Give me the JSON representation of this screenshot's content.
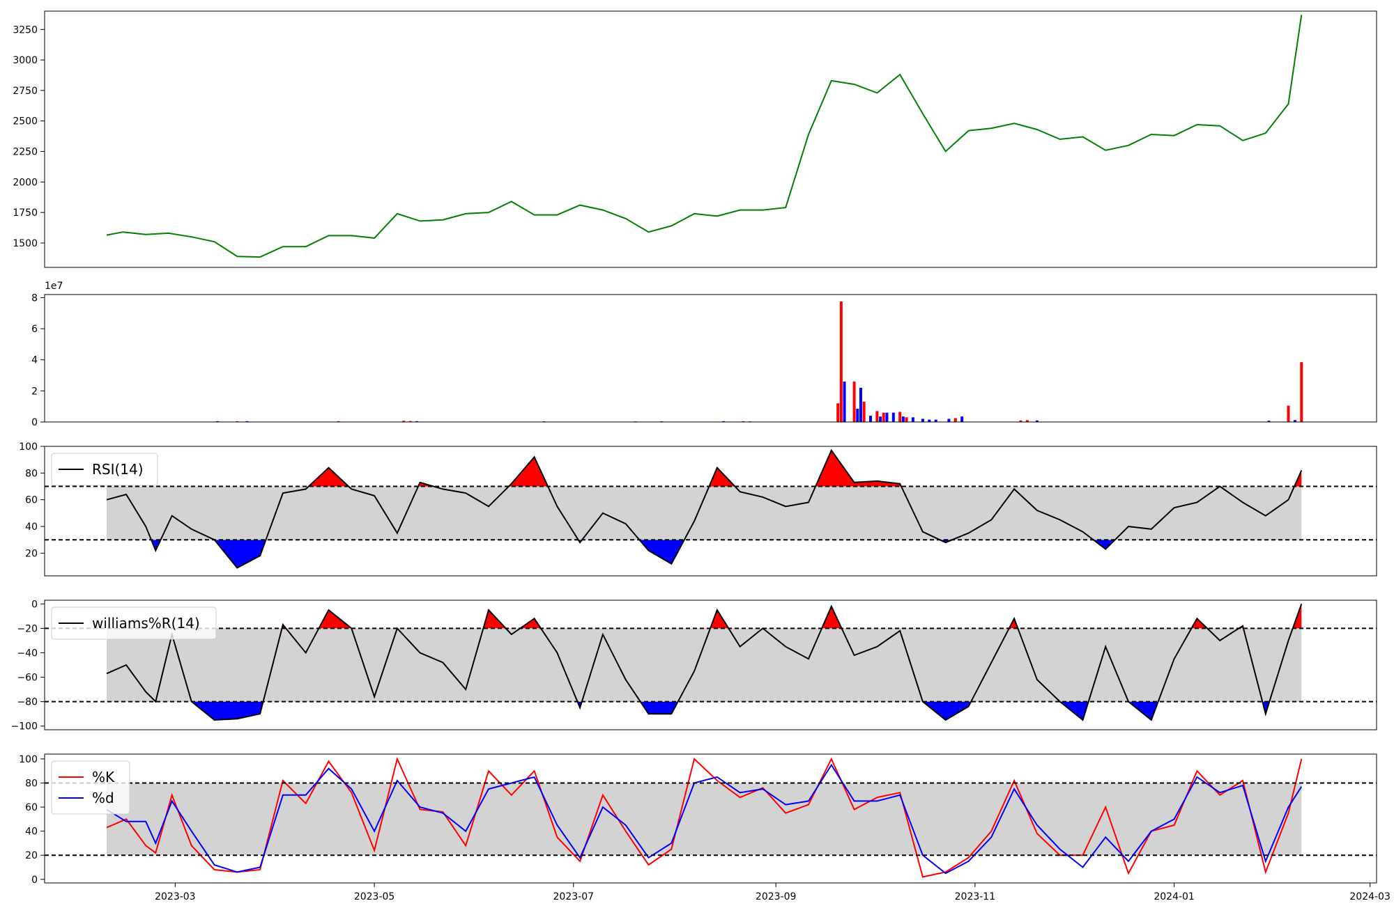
{
  "figure": {
    "x_ticks": [
      "2023-03",
      "2023-05",
      "2023-07",
      "2023-09",
      "2023-11",
      "2024-01",
      "2024-03"
    ],
    "x_range": [
      "2023-01-20",
      "2024-03-03"
    ]
  },
  "colors": {
    "price_line": "#008000",
    "up": "#ff0000",
    "down": "#0000ff",
    "band_fill": "#d3d3d3",
    "indicator_line": "#000000",
    "k_line": "#ff0000",
    "d_line": "#0000ff"
  },
  "chart_data": [
    {
      "id": "price",
      "type": "line",
      "xlabel": "",
      "ylabel": "",
      "ylim": [
        1300,
        3400
      ],
      "yticks": [
        "1500",
        "1750",
        "2000",
        "2250",
        "2500",
        "2750",
        "3000",
        "3250"
      ],
      "grid": false,
      "x": [
        "2023-02-08",
        "2023-02-13",
        "2023-02-20",
        "2023-02-27",
        "2023-03-06",
        "2023-03-13",
        "2023-03-20",
        "2023-03-27",
        "2023-04-03",
        "2023-04-10",
        "2023-04-17",
        "2023-04-24",
        "2023-05-01",
        "2023-05-08",
        "2023-05-15",
        "2023-05-22",
        "2023-05-29",
        "2023-06-05",
        "2023-06-12",
        "2023-06-19",
        "2023-06-26",
        "2023-07-03",
        "2023-07-10",
        "2023-07-17",
        "2023-07-24",
        "2023-07-31",
        "2023-08-07",
        "2023-08-14",
        "2023-08-21",
        "2023-08-28",
        "2023-09-04",
        "2023-09-11",
        "2023-09-18",
        "2023-09-25",
        "2023-10-02",
        "2023-10-09",
        "2023-10-16",
        "2023-10-23",
        "2023-10-30",
        "2023-11-06",
        "2023-11-13",
        "2023-11-20",
        "2023-11-27",
        "2023-12-04",
        "2023-12-11",
        "2023-12-18",
        "2023-12-25",
        "2024-01-01",
        "2024-01-08",
        "2024-01-15",
        "2024-01-22",
        "2024-01-29",
        "2024-02-05",
        "2024-02-09"
      ],
      "values": [
        1565,
        1590,
        1570,
        1580,
        1550,
        1510,
        1390,
        1385,
        1470,
        1470,
        1560,
        1560,
        1540,
        1740,
        1680,
        1690,
        1740,
        1750,
        1840,
        1730,
        1730,
        1810,
        1770,
        1700,
        1590,
        1640,
        1740,
        1720,
        1770,
        1770,
        1790,
        2390,
        2830,
        2800,
        2730,
        2880,
        2560,
        2250,
        2420,
        2440,
        2480,
        2430,
        2350,
        2370,
        2260,
        2300,
        2390,
        2380,
        2470,
        2460,
        2340,
        2400,
        2640,
        3370
      ]
    },
    {
      "id": "volume",
      "type": "bar",
      "xlabel": "",
      "ylabel": "",
      "ylim": [
        0,
        8.2
      ],
      "yticks": [
        "0",
        "2",
        "4",
        "6",
        "8"
      ],
      "scale_label": "1e7",
      "grid": false,
      "series": [
        {
          "color_key": "up",
          "x": [
            "2023-03-20",
            "2023-04-20",
            "2023-05-10",
            "2023-05-12",
            "2023-07-20",
            "2023-08-22",
            "2023-08-24",
            "2023-09-20",
            "2023-09-21",
            "2023-09-25",
            "2023-09-28",
            "2023-10-02",
            "2023-10-04",
            "2023-10-09",
            "2023-10-11",
            "2023-10-26",
            "2023-11-15",
            "2023-11-17",
            "2024-02-05",
            "2024-02-09"
          ],
          "values": [
            0.05,
            0.05,
            0.08,
            0.06,
            0.04,
            0.05,
            0.04,
            1.2,
            7.75,
            2.6,
            1.3,
            0.7,
            0.6,
            0.65,
            0.3,
            0.25,
            0.1,
            0.12,
            1.05,
            3.85
          ]
        },
        {
          "color_key": "down",
          "x": [
            "2023-03-14",
            "2023-03-23",
            "2023-05-14",
            "2023-06-22",
            "2023-07-28",
            "2023-08-16",
            "2023-09-22",
            "2023-09-26",
            "2023-09-27",
            "2023-09-30",
            "2023-10-03",
            "2023-10-05",
            "2023-10-07",
            "2023-10-10",
            "2023-10-13",
            "2023-10-16",
            "2023-10-18",
            "2023-10-20",
            "2023-10-24",
            "2023-10-28",
            "2023-11-20",
            "2024-01-30",
            "2024-02-07"
          ],
          "values": [
            0.05,
            0.05,
            0.05,
            0.04,
            0.04,
            0.05,
            2.6,
            0.85,
            2.2,
            0.4,
            0.35,
            0.6,
            0.6,
            0.35,
            0.3,
            0.2,
            0.15,
            0.15,
            0.2,
            0.35,
            0.1,
            0.08,
            0.12
          ]
        }
      ]
    },
    {
      "id": "rsi",
      "type": "line",
      "legend": [
        "RSI(14)"
      ],
      "legend_position": "upper-left",
      "xlabel": "",
      "ylabel": "",
      "ylim": [
        3,
        100
      ],
      "yticks": [
        "20",
        "40",
        "60",
        "80",
        "100"
      ],
      "bands": {
        "upper": 70,
        "lower": 30
      },
      "grid": false,
      "x": [
        "2023-02-08",
        "2023-02-14",
        "2023-02-20",
        "2023-02-23",
        "2023-02-28",
        "2023-03-06",
        "2023-03-13",
        "2023-03-20",
        "2023-03-27",
        "2023-04-03",
        "2023-04-10",
        "2023-04-17",
        "2023-04-24",
        "2023-05-01",
        "2023-05-08",
        "2023-05-15",
        "2023-05-22",
        "2023-05-29",
        "2023-06-05",
        "2023-06-12",
        "2023-06-19",
        "2023-06-26",
        "2023-07-03",
        "2023-07-10",
        "2023-07-17",
        "2023-07-24",
        "2023-07-31",
        "2023-08-07",
        "2023-08-14",
        "2023-08-21",
        "2023-08-28",
        "2023-09-04",
        "2023-09-11",
        "2023-09-18",
        "2023-09-25",
        "2023-10-02",
        "2023-10-09",
        "2023-10-16",
        "2023-10-23",
        "2023-10-30",
        "2023-11-06",
        "2023-11-13",
        "2023-11-20",
        "2023-11-27",
        "2023-12-04",
        "2023-12-11",
        "2023-12-18",
        "2023-12-25",
        "2024-01-01",
        "2024-01-08",
        "2024-01-15",
        "2024-01-22",
        "2024-01-29",
        "2024-02-05",
        "2024-02-09"
      ],
      "values": [
        60,
        64,
        40,
        22,
        48,
        38,
        30,
        9,
        18,
        65,
        68,
        84,
        68,
        63,
        35,
        73,
        68,
        65,
        55,
        72,
        92,
        55,
        28,
        50,
        42,
        22,
        12,
        44,
        84,
        66,
        62,
        55,
        58,
        97,
        73,
        74,
        72,
        36,
        28,
        35,
        45,
        68,
        52,
        45,
        36,
        23,
        40,
        38,
        54,
        58,
        70,
        58,
        48,
        60,
        82
      ]
    },
    {
      "id": "williams_r",
      "type": "line",
      "legend": [
        "williams%R(14)"
      ],
      "legend_position": "upper-left",
      "xlabel": "",
      "ylabel": "",
      "ylim": [
        -103,
        3
      ],
      "yticks": [
        "0",
        "−20",
        "−40",
        "−60",
        "−80",
        "−100"
      ],
      "bands": {
        "upper": -20,
        "lower": -80
      },
      "grid": false,
      "x": [
        "2023-02-08",
        "2023-02-14",
        "2023-02-20",
        "2023-02-23",
        "2023-02-28",
        "2023-03-06",
        "2023-03-13",
        "2023-03-20",
        "2023-03-27",
        "2023-04-03",
        "2023-04-10",
        "2023-04-17",
        "2023-04-24",
        "2023-05-01",
        "2023-05-08",
        "2023-05-15",
        "2023-05-22",
        "2023-05-29",
        "2023-06-05",
        "2023-06-12",
        "2023-06-19",
        "2023-06-26",
        "2023-07-03",
        "2023-07-10",
        "2023-07-17",
        "2023-07-24",
        "2023-07-31",
        "2023-08-07",
        "2023-08-14",
        "2023-08-21",
        "2023-08-28",
        "2023-09-04",
        "2023-09-11",
        "2023-09-18",
        "2023-09-25",
        "2023-10-02",
        "2023-10-09",
        "2023-10-16",
        "2023-10-23",
        "2023-10-30",
        "2023-11-06",
        "2023-11-13",
        "2023-11-20",
        "2023-11-27",
        "2023-12-04",
        "2023-12-11",
        "2023-12-18",
        "2023-12-25",
        "2024-01-01",
        "2024-01-08",
        "2024-01-15",
        "2024-01-22",
        "2024-01-29",
        "2024-02-05",
        "2024-02-09"
      ],
      "values": [
        -57,
        -50,
        -72,
        -80,
        -25,
        -80,
        -95,
        -94,
        -90,
        -17,
        -40,
        -5,
        -20,
        -76,
        -20,
        -40,
        -48,
        -70,
        -5,
        -25,
        -12,
        -40,
        -85,
        -25,
        -62,
        -90,
        -90,
        -55,
        -5,
        -35,
        -20,
        -35,
        -45,
        -2,
        -42,
        -35,
        -22,
        -80,
        -95,
        -84,
        -48,
        -12,
        -62,
        -80,
        -95,
        -35,
        -80,
        -95,
        -45,
        -12,
        -30,
        -18,
        -90,
        -30,
        0
      ]
    },
    {
      "id": "stochastic",
      "type": "line",
      "legend": [
        "%K",
        "%d"
      ],
      "legend_position": "upper-left",
      "xlabel": "",
      "ylabel": "",
      "ylim": [
        -3,
        104
      ],
      "yticks": [
        "0",
        "20",
        "40",
        "60",
        "80",
        "100"
      ],
      "bands": {
        "upper": 80,
        "lower": 20
      },
      "grid": false,
      "x": [
        "2023-02-08",
        "2023-02-14",
        "2023-02-20",
        "2023-02-23",
        "2023-02-28",
        "2023-03-06",
        "2023-03-13",
        "2023-03-20",
        "2023-03-27",
        "2023-04-03",
        "2023-04-10",
        "2023-04-17",
        "2023-04-24",
        "2023-05-01",
        "2023-05-08",
        "2023-05-15",
        "2023-05-22",
        "2023-05-29",
        "2023-06-05",
        "2023-06-12",
        "2023-06-19",
        "2023-06-26",
        "2023-07-03",
        "2023-07-10",
        "2023-07-17",
        "2023-07-24",
        "2023-07-31",
        "2023-08-07",
        "2023-08-14",
        "2023-08-21",
        "2023-08-28",
        "2023-09-04",
        "2023-09-11",
        "2023-09-18",
        "2023-09-25",
        "2023-10-02",
        "2023-10-09",
        "2023-10-16",
        "2023-10-23",
        "2023-10-30",
        "2023-11-06",
        "2023-11-13",
        "2023-11-20",
        "2023-11-27",
        "2023-12-04",
        "2023-12-11",
        "2023-12-18",
        "2023-12-25",
        "2024-01-01",
        "2024-01-08",
        "2024-01-15",
        "2024-01-22",
        "2024-01-29",
        "2024-02-05",
        "2024-02-09"
      ],
      "series": [
        {
          "name": "%K",
          "color_key": "k_line",
          "values": [
            43,
            50,
            28,
            22,
            70,
            28,
            8,
            6,
            8,
            82,
            63,
            98,
            72,
            24,
            100,
            58,
            56,
            28,
            90,
            70,
            90,
            35,
            15,
            70,
            40,
            12,
            25,
            100,
            82,
            68,
            76,
            55,
            62,
            100,
            58,
            68,
            72,
            2,
            6,
            18,
            40,
            82,
            38,
            20,
            20,
            60,
            5,
            40,
            45,
            90,
            70,
            82,
            6,
            55,
            100
          ]
        },
        {
          "name": "%d",
          "color_key": "d_line",
          "values": [
            58,
            48,
            48,
            30,
            65,
            40,
            12,
            6,
            10,
            70,
            70,
            92,
            75,
            40,
            82,
            60,
            55,
            40,
            75,
            80,
            85,
            45,
            18,
            60,
            45,
            18,
            30,
            80,
            85,
            72,
            75,
            62,
            65,
            95,
            65,
            65,
            70,
            20,
            5,
            15,
            35,
            75,
            45,
            25,
            10,
            35,
            15,
            40,
            50,
            85,
            72,
            78,
            15,
            60,
            77
          ]
        }
      ]
    }
  ]
}
